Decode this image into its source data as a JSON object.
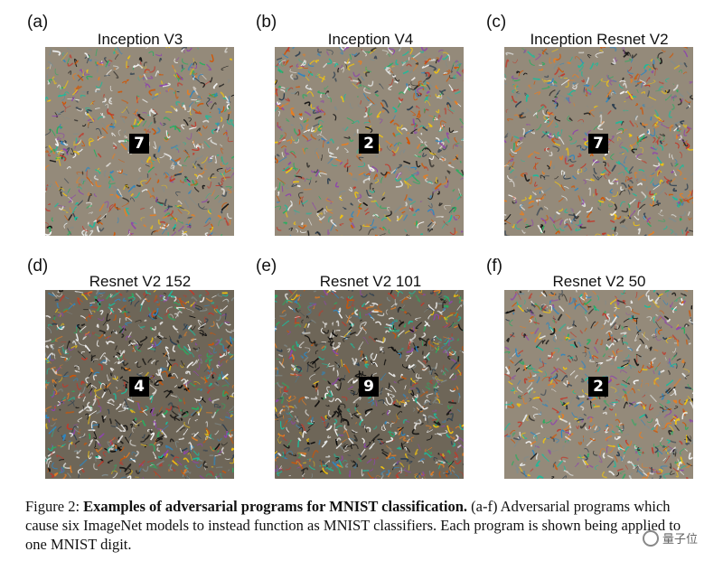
{
  "panels": [
    {
      "letter": "(a)",
      "title": "Inception V3",
      "digit": "7",
      "seed": 11,
      "density": "low"
    },
    {
      "letter": "(b)",
      "title": "Inception V4",
      "digit": "2",
      "seed": 23,
      "density": "low"
    },
    {
      "letter": "(c)",
      "title": "Inception  Resnet V2",
      "digit": "7",
      "seed": 37,
      "density": "low"
    },
    {
      "letter": "(d)",
      "title": "Resnet V2 152",
      "digit": "4",
      "seed": 41,
      "density": "high"
    },
    {
      "letter": "(e)",
      "title": "Resnet V2 101",
      "digit": "9",
      "seed": 53,
      "density": "high"
    },
    {
      "letter": "(f)",
      "title": "Resnet V2 50",
      "digit": "2",
      "seed": 67,
      "density": "mid"
    }
  ],
  "caption": {
    "prefix": "Figure 2: ",
    "bold": "Examples of adversarial programs for MNIST classification.",
    "body": " (a-f) Adversarial programs which cause six ImageNet models to instead function as MNIST classifiers. Each program is shown being applied to one MNIST digit."
  },
  "watermark": "量子位"
}
